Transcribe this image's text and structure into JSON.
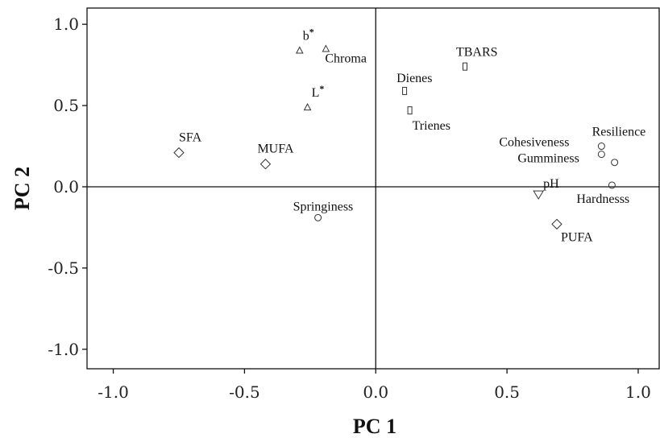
{
  "chart_data": {
    "type": "scatter",
    "title": "",
    "xlabel": "PC 1",
    "ylabel": "PC 2",
    "xlim": [
      -1.1,
      1.08
    ],
    "ylim": [
      -1.12,
      1.1
    ],
    "x_ticks": [
      "-1.0",
      "-0.5",
      "0.0",
      "0.5",
      "1.0"
    ],
    "y_ticks": [
      "1.0",
      "0.5",
      "0.0",
      "-0.5",
      "-1.0"
    ],
    "reference_lines": {
      "x": 0,
      "y": 0
    },
    "grid": false,
    "points": [
      {
        "label": "b",
        "sup": "*",
        "x": -0.29,
        "y": 0.84,
        "marker": "triangle"
      },
      {
        "label": "Chroma",
        "x": -0.19,
        "y": 0.85,
        "marker": "triangle"
      },
      {
        "label": "L",
        "sup": "*",
        "x": -0.26,
        "y": 0.49,
        "marker": "triangle"
      },
      {
        "label": "TBARS",
        "x": 0.34,
        "y": 0.74,
        "marker": "square"
      },
      {
        "label": "Dienes",
        "x": 0.11,
        "y": 0.59,
        "marker": "square"
      },
      {
        "label": "Trienes",
        "x": 0.13,
        "y": 0.47,
        "marker": "square"
      },
      {
        "label": "SFA",
        "x": -0.75,
        "y": 0.21,
        "marker": "diamond"
      },
      {
        "label": "MUFA",
        "x": -0.42,
        "y": 0.14,
        "marker": "diamond"
      },
      {
        "label": "PUFA",
        "x": 0.69,
        "y": -0.23,
        "marker": "diamond"
      },
      {
        "label": "Springiness",
        "x": -0.22,
        "y": -0.19,
        "marker": "circle"
      },
      {
        "label": "Cohesiveness",
        "x": 0.86,
        "y": 0.25,
        "marker": "circle"
      },
      {
        "label": "Gumminess",
        "x": 0.86,
        "y": 0.2,
        "marker": "circle"
      },
      {
        "label": "Resilience",
        "x": 0.91,
        "y": 0.15,
        "marker": "circle"
      },
      {
        "label": "Hardnesss",
        "x": 0.9,
        "y": 0.01,
        "marker": "circle"
      },
      {
        "label": "pH",
        "x": 0.62,
        "y": -0.05,
        "marker": "triangle-down"
      }
    ]
  }
}
